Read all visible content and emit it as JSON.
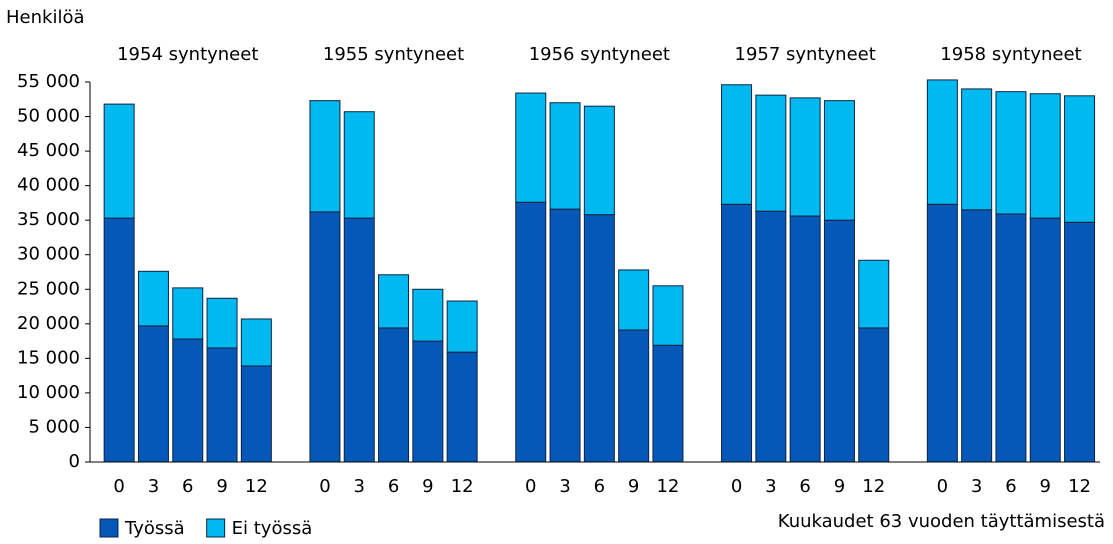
{
  "chart_data": {
    "type": "stacked_bar",
    "y_label": "Henkilöä",
    "x_label": "Kuukaudet 63 vuoden täyttämisestä",
    "groups": [
      "1954 syntyneet",
      "1955 syntyneet",
      "1956 syntyneet",
      "1957 syntyneet",
      "1958 syntyneet"
    ],
    "categories": [
      "0",
      "3",
      "6",
      "9",
      "12",
      "0",
      "3",
      "6",
      "9",
      "12",
      "0",
      "3",
      "6",
      "9",
      "12",
      "0",
      "3",
      "6",
      "9",
      "12",
      "0",
      "3",
      "6",
      "9",
      "12"
    ],
    "series": [
      {
        "name": "Työssä",
        "color": "#0557b8",
        "values": [
          35300,
          19700,
          17800,
          16500,
          13900,
          36200,
          35300,
          19400,
          17500,
          15900,
          37600,
          36600,
          35800,
          19100,
          16900,
          37300,
          36300,
          35600,
          35000,
          19400,
          37300,
          36500,
          35900,
          35300,
          34700
        ]
      },
      {
        "name": "Ei työssä",
        "color": "#00b9f1",
        "values": [
          16500,
          7900,
          7400,
          7200,
          6800,
          16100,
          15400,
          7700,
          7500,
          7400,
          15800,
          15400,
          15700,
          8700,
          8600,
          17300,
          16800,
          17100,
          17300,
          9800,
          18000,
          17500,
          17700,
          18000,
          18300
        ]
      }
    ],
    "ylim": [
      0,
      55000
    ],
    "yticks": [
      0,
      {
        "value": 5000,
        "label": "5 000"
      },
      {
        "value": 10000,
        "label": "10 000"
      },
      {
        "value": 15000,
        "label": "15 000"
      },
      {
        "value": 20000,
        "label": "20 000"
      },
      {
        "value": 25000,
        "label": "25 000"
      },
      {
        "value": 30000,
        "label": "30 000"
      },
      {
        "value": 35000,
        "label": "35 000"
      },
      {
        "value": 40000,
        "label": "40 000"
      },
      {
        "value": 45000,
        "label": "45 000"
      },
      {
        "value": 50000,
        "label": "50 000"
      },
      {
        "value": 55000,
        "label": "55 000"
      }
    ],
    "grid": false,
    "legend": "bottom-left"
  }
}
